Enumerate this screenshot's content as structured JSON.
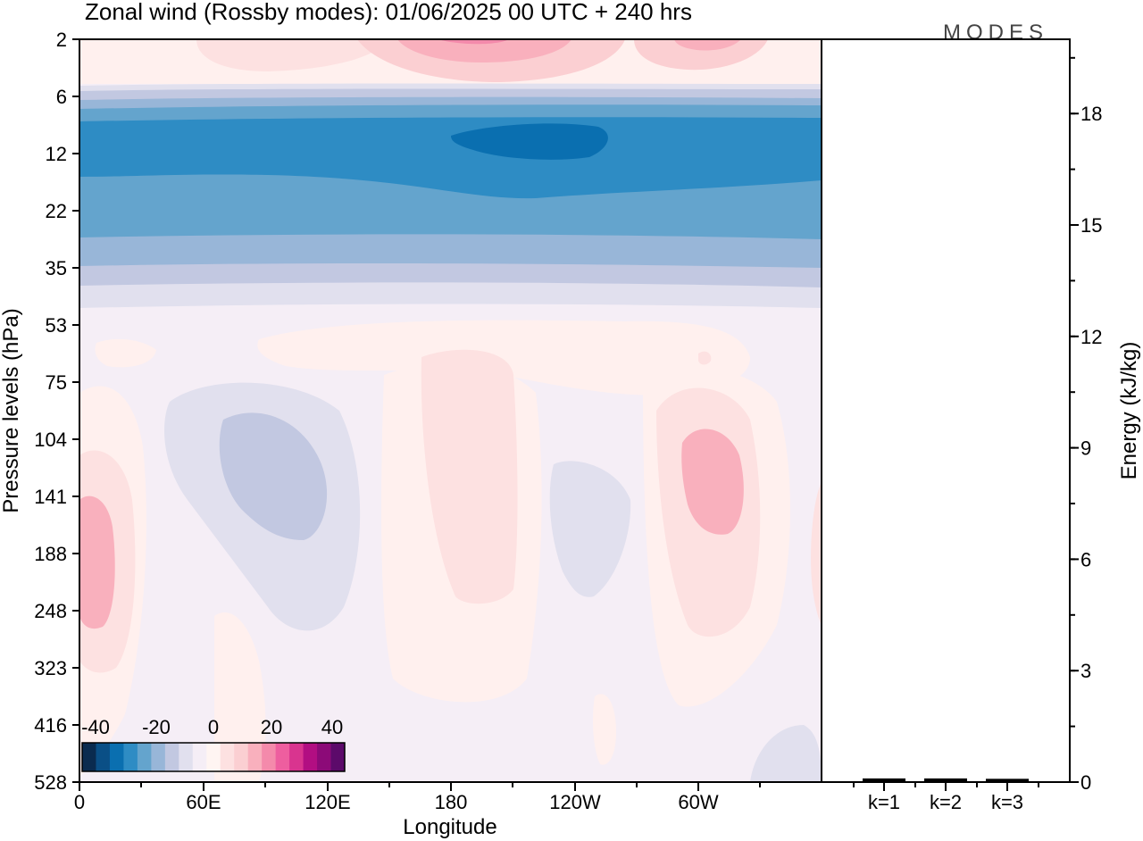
{
  "chart_data": {
    "type": "heatmap",
    "title": "Zonal wind (Rossby modes):  01/06/2025  00 UTC  + 240 hrs",
    "xlabel": "Longitude",
    "ylabel": "Pressure levels (hPa)",
    "y2label": "Energy (kJ/kg)",
    "x_ticks": [
      "0",
      "60E",
      "120E",
      "180",
      "120W",
      "60W"
    ],
    "y_ticks": [
      "2",
      "6",
      "12",
      "22",
      "35",
      "53",
      "75",
      "104",
      "141",
      "188",
      "248",
      "323",
      "416",
      "528"
    ],
    "energy_ticks": [
      "0",
      "3",
      "6",
      "9",
      "12",
      "15",
      "18"
    ],
    "energy_range": [
      0,
      20
    ],
    "energy_bars": {
      "categories": [
        "k=1",
        "k=2",
        "k=3"
      ],
      "values": [
        0.05,
        0.05,
        0.04
      ]
    },
    "colorbar": {
      "labels": [
        "-40",
        "-20",
        "0",
        "20",
        "40"
      ],
      "colors": [
        "#0a2b4f",
        "#0a4f86",
        "#0a6fb0",
        "#2e8cc4",
        "#64a4cd",
        "#98b6d8",
        "#c2c8e1",
        "#e1e0ee",
        "#f5eef6",
        "#fff5f2",
        "#fde1e1",
        "#fbcfd2",
        "#f9b0bd",
        "#f48aab",
        "#ee5e9f",
        "#d9348f",
        "#b20e82",
        "#8c0a78",
        "#5c0a6a"
      ]
    },
    "logo": "MODES"
  }
}
